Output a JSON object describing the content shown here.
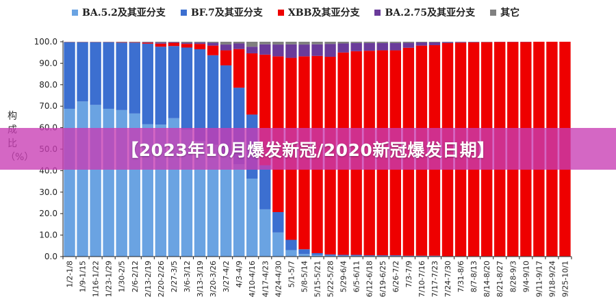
{
  "banner": {
    "text": "【2023年10月爆发新冠/2020新冠爆发日期】"
  },
  "colors": {
    "ba52": "#6aa3e2",
    "bf7": "#3c6fd0",
    "xbb": "#ee0000",
    "ba275": "#6a3b9a",
    "other": "#808080"
  },
  "chart_data": {
    "type": "bar",
    "stacked": true,
    "ylabel": "构成比（%）",
    "ylim": [
      0,
      100
    ],
    "yticks": [
      "0.0",
      "10.0",
      "20.0",
      "30.0",
      "40.0",
      "50.0",
      "60.0",
      "70.0",
      "80.0",
      "90.0",
      "100.0"
    ],
    "grid": false,
    "legend_position": "top",
    "categories": [
      "1/2-1/8",
      "1/9-1/15",
      "1/16-1/22",
      "1/23-1/29",
      "1/30-2/5",
      "2/6-2/12",
      "2/13-2/19",
      "2/20-2/26",
      "2/27-3/5",
      "3/6-3/12",
      "3/13-3/19",
      "3/20-3/26",
      "3/27-4/2",
      "4/3-4/9",
      "4/10-4/16",
      "4/17-4/23",
      "4/24-4/30",
      "5/1-5/7",
      "5/8-5/14",
      "5/15-5/21",
      "5/22-5/28",
      "5/29-6/4",
      "6/5-6/11",
      "6/12-6/18",
      "6/19-6/25",
      "6/26-7/2",
      "7/3-7/9",
      "7/10-7/16",
      "7/17-7/23",
      "7/24-7/30",
      "7/31-8/6",
      "8/7-8/13",
      "8/14-8/20",
      "8/21-8/27",
      "8/28-9/3",
      "9/4-9/10",
      "9/11-9/17",
      "9/18-9/24",
      "9/25-10/1"
    ],
    "series": [
      {
        "name": "BA.5.2及其亚分支",
        "color": "#6aa3e2",
        "values": [
          68.8,
          72.2,
          70.6,
          68.8,
          68.2,
          66.6,
          61.6,
          61.4,
          64.4,
          59.1,
          53.7,
          52.0,
          47.0,
          43.0,
          36.3,
          22.0,
          11.2,
          3.0,
          1.2,
          0.8,
          0.5,
          0.4,
          0.4,
          0.3,
          0.3,
          0.3,
          0.2,
          0.2,
          0.2,
          0.1,
          0.1,
          0.1,
          0.1,
          0.1,
          0.1,
          0.1,
          0.1,
          0.1,
          0.1
        ]
      },
      {
        "name": "BF.7及其亚分支",
        "color": "#3c6fd0",
        "values": [
          31.0,
          27.6,
          29.2,
          31.0,
          31.4,
          33.0,
          37.5,
          36.3,
          33.6,
          38.2,
          42.8,
          41.7,
          42.0,
          35.6,
          29.8,
          20.5,
          9.5,
          4.8,
          2.2,
          0.8,
          0.5,
          0.4,
          0.4,
          0.3,
          0.3,
          0.3,
          0.2,
          0.2,
          0.2,
          0.1,
          0.1,
          0.1,
          0.1,
          0.1,
          0.1,
          0.1,
          0.1,
          0.1,
          0.1
        ]
      },
      {
        "name": "XBB及其亚分支",
        "color": "#ee0000",
        "values": [
          0.1,
          0.1,
          0.1,
          0.1,
          0.2,
          0.2,
          0.5,
          1.4,
          1.5,
          1.7,
          2.5,
          4.5,
          7.0,
          18.0,
          28.5,
          51.5,
          72.5,
          84.7,
          89.8,
          91.8,
          92.0,
          94.2,
          94.8,
          95.2,
          95.4,
          95.4,
          96.8,
          97.8,
          98.0,
          99.2,
          99.4,
          99.5,
          99.6,
          99.7,
          99.7,
          99.7,
          99.8,
          99.8,
          99.8
        ]
      },
      {
        "name": "BA.2.75及其亚分支",
        "color": "#6a3b9a",
        "values": [
          0.0,
          0.0,
          0.0,
          0.0,
          0.0,
          0.0,
          0.2,
          0.5,
          0.3,
          0.5,
          0.6,
          1.3,
          2.7,
          2.6,
          3.1,
          4.8,
          5.5,
          6.3,
          5.5,
          5.4,
          6.0,
          4.2,
          3.8,
          3.6,
          3.4,
          3.4,
          2.3,
          1.5,
          1.3,
          0.4,
          0.3,
          0.2,
          0.1,
          0.1,
          0.1,
          0.1,
          0.0,
          0.0,
          0.0
        ]
      },
      {
        "name": "其它",
        "color": "#808080",
        "values": [
          0.1,
          0.1,
          0.1,
          0.1,
          0.2,
          0.2,
          0.2,
          0.4,
          0.2,
          0.5,
          0.4,
          0.5,
          1.3,
          0.8,
          2.3,
          1.2,
          1.3,
          1.2,
          1.3,
          1.2,
          1.0,
          0.8,
          0.6,
          0.6,
          0.6,
          0.6,
          0.5,
          0.3,
          0.3,
          0.2,
          0.1,
          0.1,
          0.1,
          0.0,
          0.0,
          0.0,
          0.0,
          0.0,
          0.0
        ]
      }
    ]
  }
}
